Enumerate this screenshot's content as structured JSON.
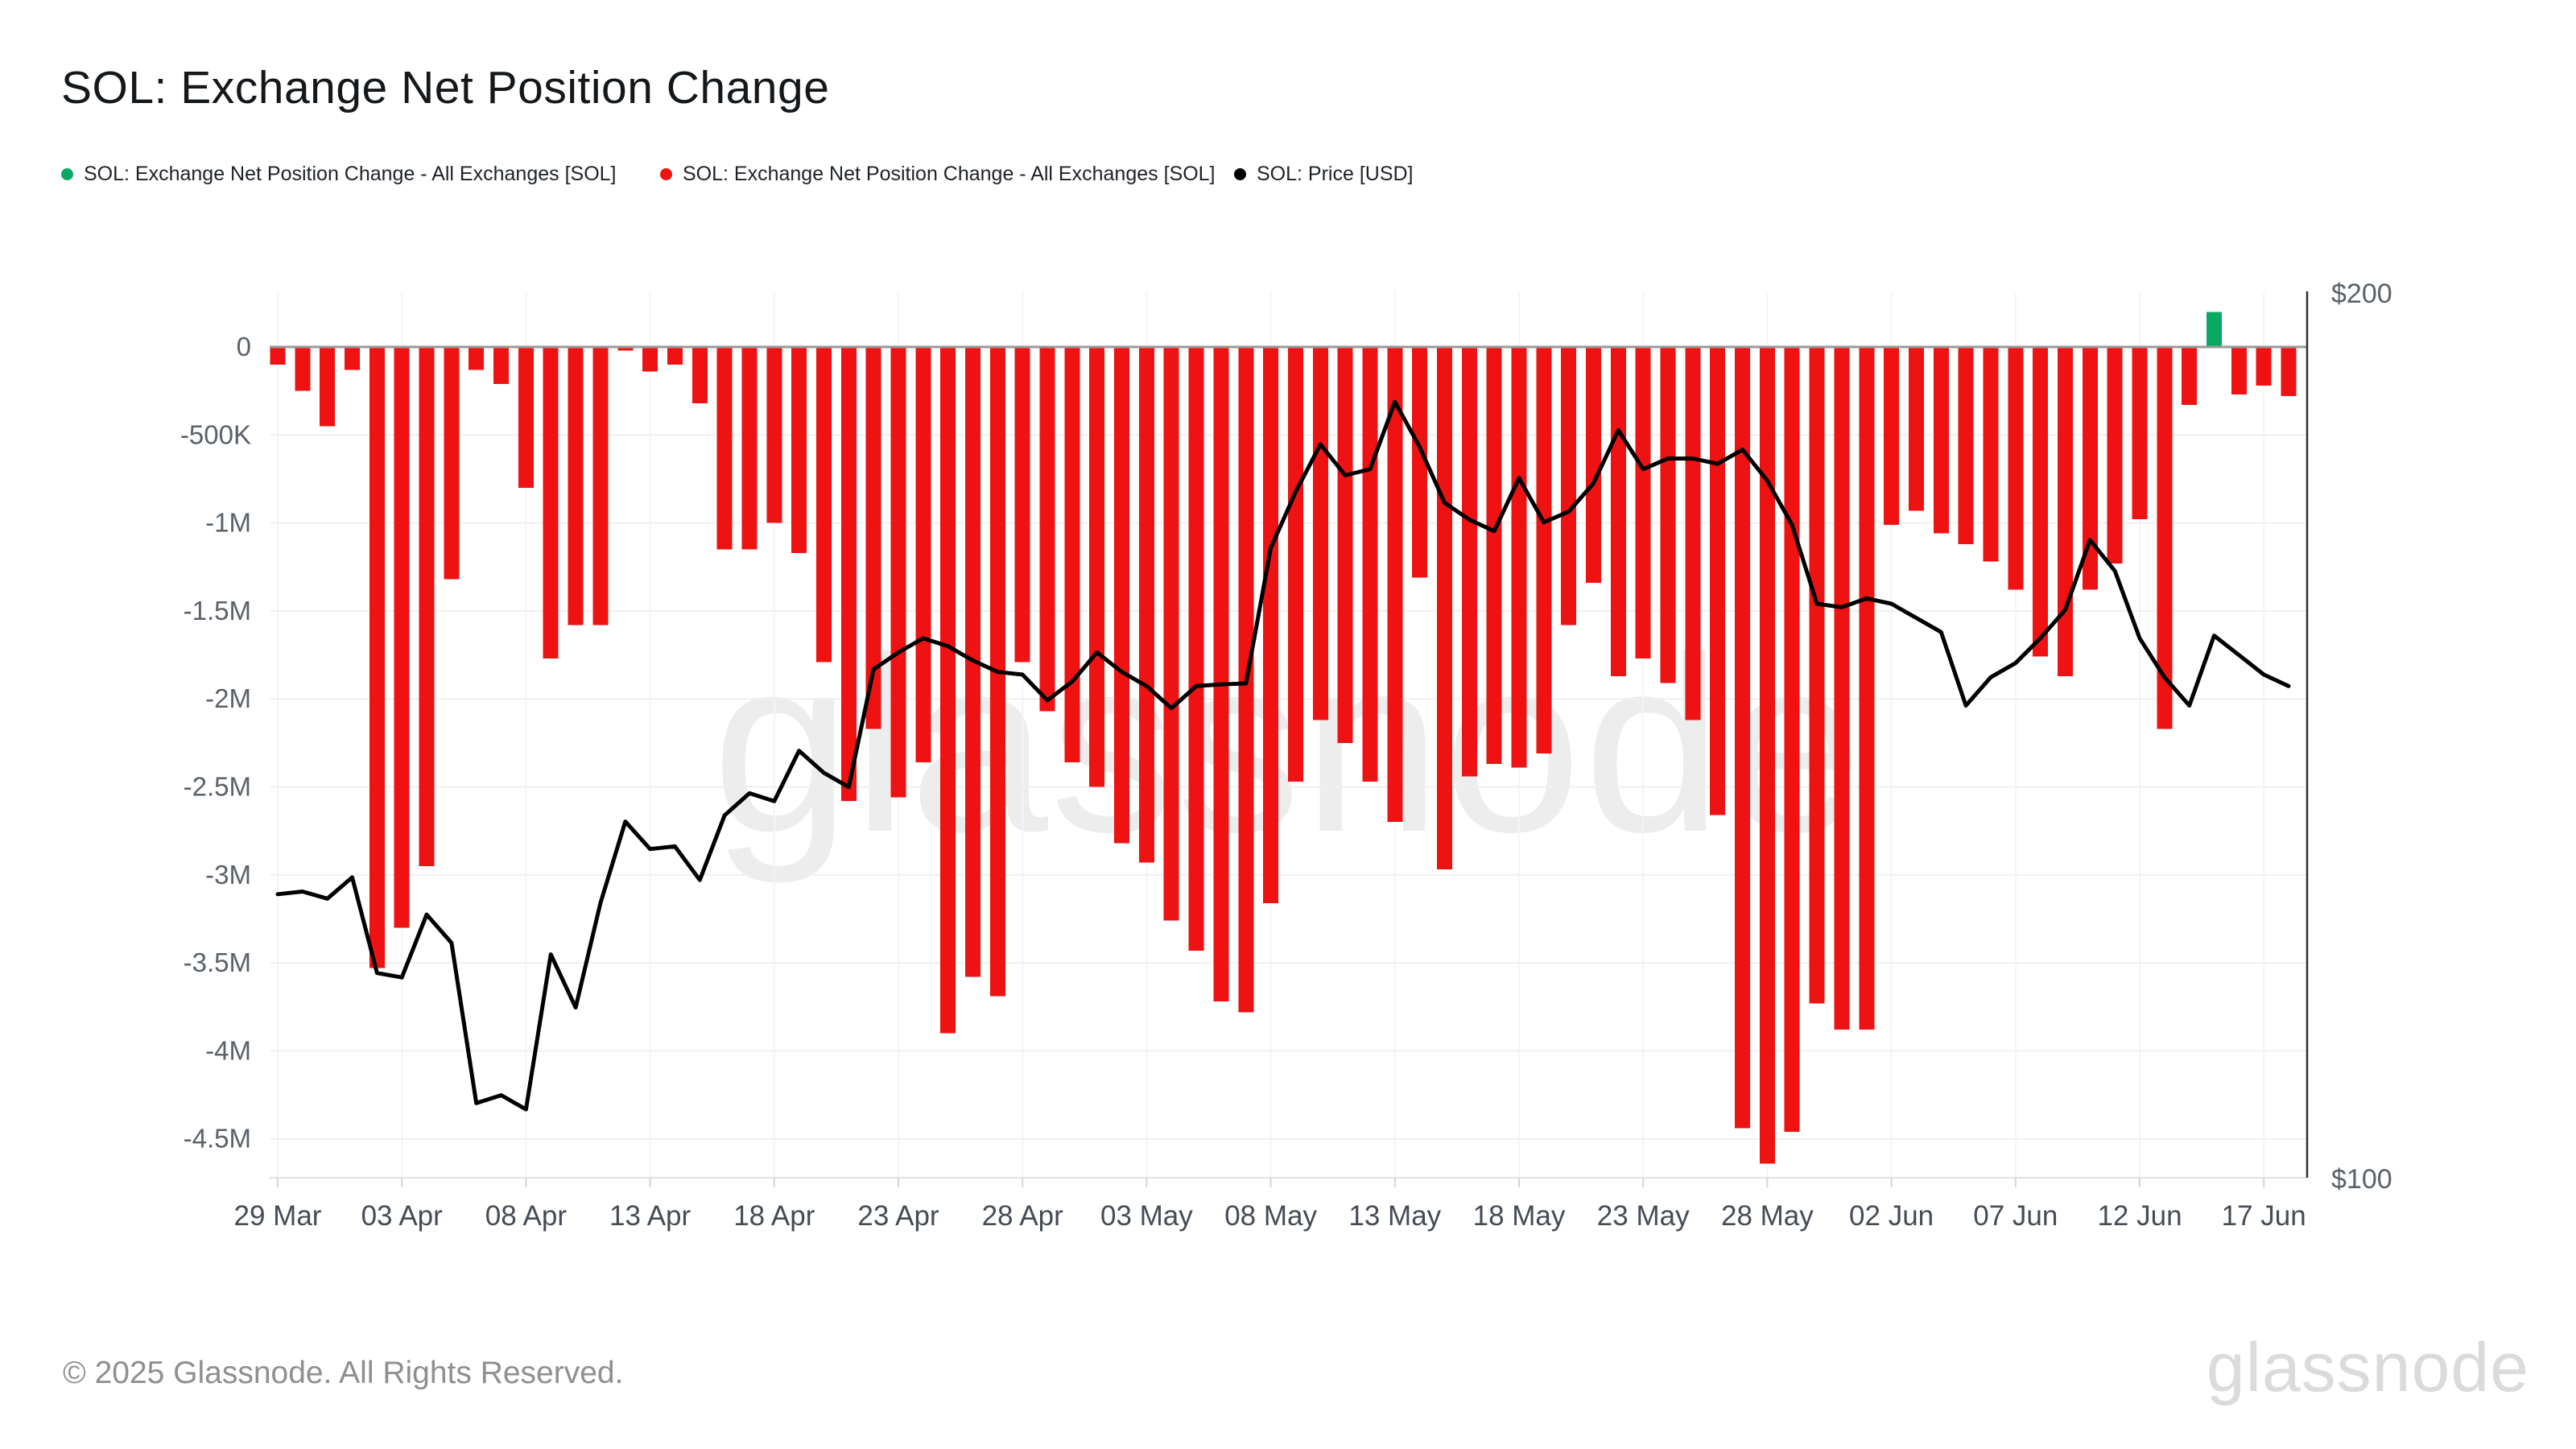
{
  "title": "SOL: Exchange Net Position Change",
  "watermark": "glassnode",
  "footer": {
    "copyright": "© 2025 Glassnode. All Rights Reserved.",
    "brand": "glassnode"
  },
  "legend": [
    {
      "label": "SOL: Exchange Net Position Change - All Exchanges [SOL]",
      "color": "#0aa963"
    },
    {
      "label": "SOL: Exchange Net Position Change - All Exchanges [SOL]",
      "color": "#ee1212"
    },
    {
      "label": "SOL: Price [USD]",
      "color": "#000000"
    }
  ],
  "chart_data": {
    "type": "bar",
    "title": "SOL: Exchange Net Position Change",
    "grid": "horizontal-light",
    "legend_position": "top",
    "colors": {
      "bar_negative": "#ee1212",
      "bar_positive": "#0aa963",
      "price_line": "#000000",
      "zero_line": "#999999",
      "gridline": "#f0f0f0",
      "v_gridline": "#f5f5f5",
      "axis_label": "#5a6169",
      "x_label": "#454c55",
      "right_spine": "#2f2f2f",
      "bottom_spine": "#e2e2e2"
    },
    "left_axis": {
      "unit": "SOL",
      "ylim": [
        -4700000,
        300000
      ],
      "tick_labels": [
        "0",
        "-500K",
        "-1M",
        "-1.5M",
        "-2M",
        "-2.5M",
        "-3M",
        "-3.5M",
        "-4M",
        "-4.5M"
      ],
      "tick_values_m": [
        0,
        -0.5,
        -1,
        -1.5,
        -2,
        -2.5,
        -3,
        -3.5,
        -4,
        -4.5
      ]
    },
    "right_axis": {
      "unit": "USD",
      "ylim": [
        100,
        200
      ],
      "ticks": [
        {
          "label": "$200",
          "value": 200
        },
        {
          "label": "$100",
          "value": 100
        }
      ]
    },
    "x_ticks": [
      "29 Mar",
      "03 Apr",
      "08 Apr",
      "13 Apr",
      "18 Apr",
      "23 Apr",
      "28 Apr",
      "03 May",
      "08 May",
      "13 May",
      "18 May",
      "23 May",
      "28 May",
      "02 Jun",
      "07 Jun",
      "12 Jun",
      "17 Jun"
    ],
    "x_tick_every": 5,
    "categories": [
      "29 Mar",
      "30 Mar",
      "31 Mar",
      "01 Apr",
      "02 Apr",
      "03 Apr",
      "04 Apr",
      "05 Apr",
      "06 Apr",
      "07 Apr",
      "08 Apr",
      "09 Apr",
      "10 Apr",
      "11 Apr",
      "12 Apr",
      "13 Apr",
      "14 Apr",
      "15 Apr",
      "16 Apr",
      "17 Apr",
      "18 Apr",
      "19 Apr",
      "20 Apr",
      "21 Apr",
      "22 Apr",
      "23 Apr",
      "24 Apr",
      "25 Apr",
      "26 Apr",
      "27 Apr",
      "28 Apr",
      "29 Apr",
      "30 Apr",
      "01 May",
      "02 May",
      "03 May",
      "04 May",
      "05 May",
      "06 May",
      "07 May",
      "08 May",
      "09 May",
      "10 May",
      "11 May",
      "12 May",
      "13 May",
      "14 May",
      "15 May",
      "16 May",
      "17 May",
      "18 May",
      "19 May",
      "20 May",
      "21 May",
      "22 May",
      "23 May",
      "24 May",
      "25 May",
      "26 May",
      "27 May",
      "28 May",
      "29 May",
      "30 May",
      "31 May",
      "01 Jun",
      "02 Jun",
      "03 Jun",
      "04 Jun",
      "05 Jun",
      "06 Jun",
      "07 Jun",
      "08 Jun",
      "09 Jun",
      "10 Jun",
      "11 Jun",
      "12 Jun",
      "13 Jun",
      "14 Jun",
      "15 Jun",
      "16 Jun",
      "17 Jun",
      "18 Jun"
    ],
    "series": [
      {
        "name": "SOL: Exchange Net Position Change - All Exchanges [SOL]",
        "type": "bar",
        "unit": "SOL",
        "values": [
          -100000,
          -250000,
          -450000,
          -130000,
          -3530000,
          -3300000,
          -2950000,
          -1320000,
          -130000,
          -210000,
          -800000,
          -1770000,
          -1580000,
          -1580000,
          -20000,
          -140000,
          -100000,
          -320000,
          -1150000,
          -1150000,
          -1000000,
          -1170000,
          -1790000,
          -2580000,
          -2170000,
          -2560000,
          -2360000,
          -3900000,
          -3580000,
          -3690000,
          -1790000,
          -2070000,
          -2360000,
          -2500000,
          -2820000,
          -2930000,
          -3260000,
          -3430000,
          -3720000,
          -3780000,
          -3160000,
          -2470000,
          -2120000,
          -2250000,
          -2470000,
          -2700000,
          -1310000,
          -2970000,
          -2440000,
          -2370000,
          -2390000,
          -2310000,
          -1580000,
          -1340000,
          -1870000,
          -1770000,
          -1910000,
          -2120000,
          -2660000,
          -4440000,
          -4640000,
          -4460000,
          -3730000,
          -3880000,
          -3880000,
          -1010000,
          -930000,
          -1060000,
          -1120000,
          -1220000,
          -1380000,
          -1760000,
          -1870000,
          -1380000,
          -1230000,
          -980000,
          -2170000,
          -330000,
          200000,
          -270000,
          -220000,
          -280000
        ]
      },
      {
        "name": "SOL: Price [USD]",
        "type": "line",
        "unit": "USD",
        "values": [
          132.2,
          132.5,
          131.7,
          134.1,
          123.3,
          122.8,
          129.9,
          126.7,
          108.6,
          109.5,
          107.9,
          125.4,
          119.4,
          131.2,
          140.4,
          137.3,
          137.6,
          133.8,
          141.1,
          143.6,
          142.7,
          148.4,
          145.9,
          144.3,
          157.6,
          159.5,
          161.1,
          160.2,
          158.6,
          157.3,
          157.0,
          154.1,
          156.2,
          159.5,
          157.3,
          155.7,
          153.2,
          155.7,
          155.9,
          156.0,
          171.3,
          177.6,
          183.0,
          179.5,
          180.2,
          187.8,
          182.7,
          176.4,
          174.5,
          173.2,
          179.2,
          174.2,
          175.4,
          178.6,
          184.6,
          180.2,
          181.4,
          181.4,
          180.8,
          182.4,
          178.9,
          173.9,
          165.0,
          164.6,
          165.6,
          165.0,
          163.4,
          161.8,
          153.5,
          156.7,
          158.3,
          161.1,
          164.3,
          172.2,
          168.7,
          161.1,
          156.7,
          153.5,
          161.4,
          159.2,
          157.0,
          155.7
        ]
      }
    ]
  }
}
